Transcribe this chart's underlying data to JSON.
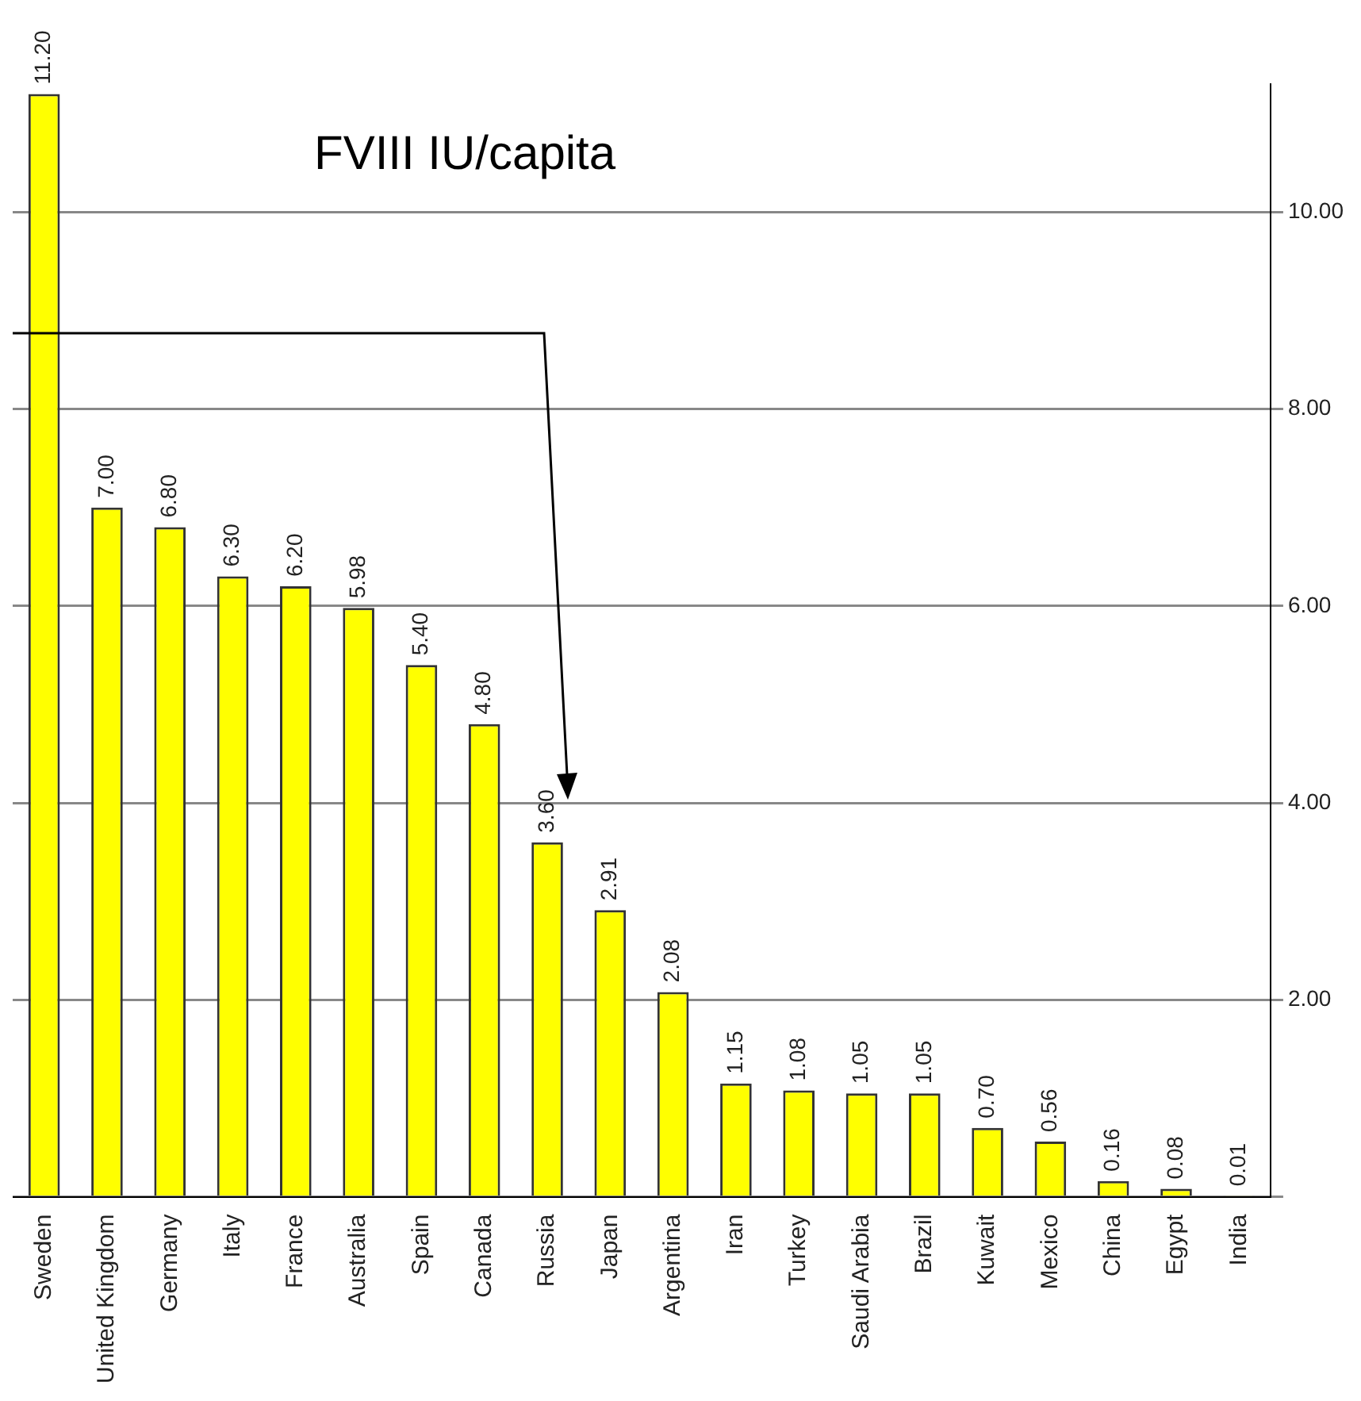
{
  "chart_data": {
    "type": "bar",
    "title": "FVIII IU/capita",
    "categories": [
      "Sweden",
      "United Kingdom",
      "Germany",
      "Italy",
      "France",
      "Australia",
      "Spain",
      "Canada",
      "Russia",
      "Japan",
      "Argentina",
      "Iran",
      "Turkey",
      "Saudi Arabia",
      "Brazil",
      "Kuwait",
      "Mexico",
      "China",
      "Egypt",
      "India"
    ],
    "values": [
      11.2,
      7.0,
      6.8,
      6.3,
      6.2,
      5.98,
      5.4,
      4.8,
      3.6,
      2.91,
      2.08,
      1.15,
      1.08,
      1.05,
      1.05,
      0.7,
      0.56,
      0.16,
      0.08,
      0.01
    ],
    "value_labels": [
      "11.20",
      "7.00",
      "6.80",
      "6.30",
      "6.20",
      "5.98",
      "5.40",
      "4.80",
      "3.60",
      "2.91",
      "2.08",
      "1.15",
      "1.08",
      "1.05",
      "1.05",
      "0.70",
      "0.56",
      "0.16",
      "0.08",
      "0.01"
    ],
    "color": "#ffff00",
    "ylim": [
      0,
      11.3
    ],
    "yticks": [
      {
        "value": 0,
        "label": null
      },
      {
        "value": 2,
        "label": "2.00"
      },
      {
        "value": 4,
        "label": "4.00"
      },
      {
        "value": 6,
        "label": "6.00"
      },
      {
        "value": 8,
        "label": "8.00"
      },
      {
        "value": 10,
        "label": "10.00"
      }
    ],
    "grid": "y",
    "legend": false
  }
}
